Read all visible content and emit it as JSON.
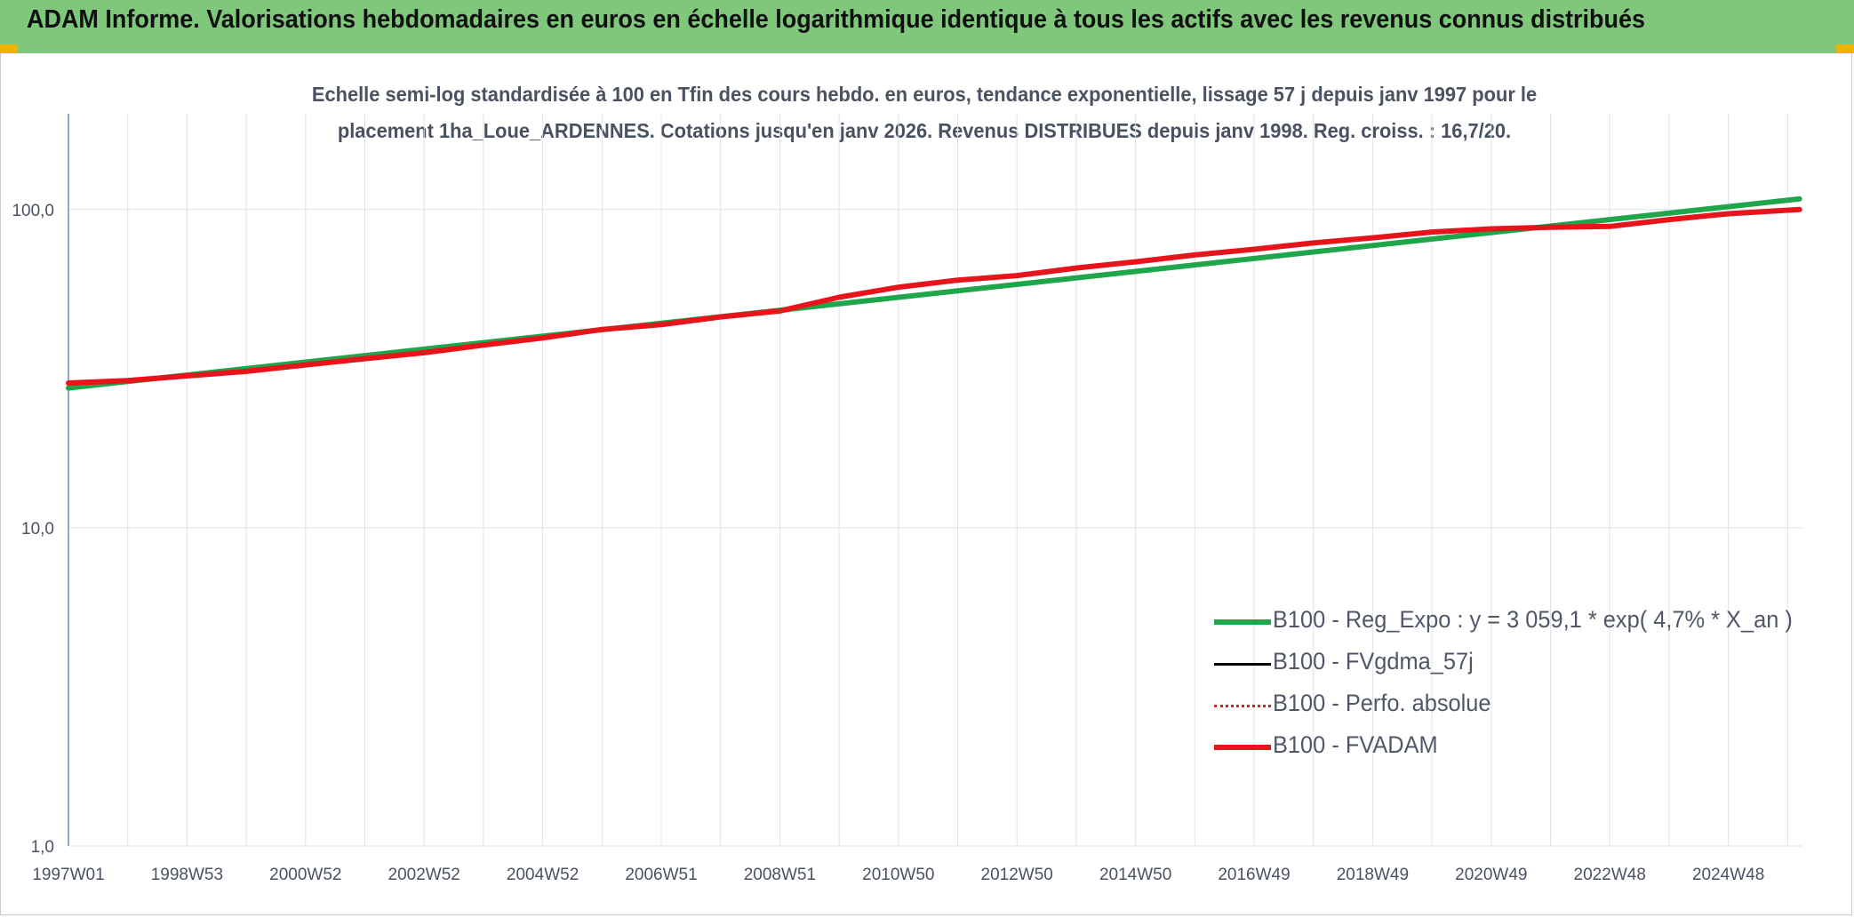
{
  "header": {
    "title": "ADAM Informe. Valorisations hebdomadaires en euros en échelle logarithmique identique à tous les actifs avec les revenus connus distribués"
  },
  "colors": {
    "header_band": "#7ec77b",
    "reg_expo": "#1fa64a",
    "fvgdma": "#000000",
    "perfo": "#d42020",
    "fvadam": "#e8141b",
    "axis": "#4472c4",
    "grid": "#dfe3e8"
  },
  "chart_data": {
    "type": "line",
    "title_line1": "Echelle semi-log standardisée à 100 en Tfin des cours hebdo. en euros, tendance exponentielle, lissage 57 j depuis janv 1997 pour le",
    "title_line2": "placement 1ha_Loue_ARDENNES. Cotations jusqu'en janv 2026. Revenus DISTRIBUES depuis janv 1998. Reg. croiss. : 16,7/20.",
    "y_scale": "log",
    "ylim": [
      1,
      200
    ],
    "y_ticks": [
      {
        "value": 1,
        "label": "1,0"
      },
      {
        "value": 10,
        "label": "10,0"
      },
      {
        "value": 100,
        "label": "100,0"
      }
    ],
    "x_range": [
      1997.0,
      2026.25
    ],
    "x_ticks": [
      {
        "x": 1997.0,
        "label": "1997W01"
      },
      {
        "x": 1999.0,
        "label": "1998W53"
      },
      {
        "x": 2001.0,
        "label": "2000W52"
      },
      {
        "x": 2003.0,
        "label": "2002W52"
      },
      {
        "x": 2005.0,
        "label": "2004W52"
      },
      {
        "x": 2007.0,
        "label": "2006W51"
      },
      {
        "x": 2009.0,
        "label": "2008W51"
      },
      {
        "x": 2011.0,
        "label": "2010W50"
      },
      {
        "x": 2013.0,
        "label": "2012W50"
      },
      {
        "x": 2015.0,
        "label": "2014W50"
      },
      {
        "x": 2017.0,
        "label": "2016W49"
      },
      {
        "x": 2019.0,
        "label": "2018W49"
      },
      {
        "x": 2021.0,
        "label": "2020W49"
      },
      {
        "x": 2023.0,
        "label": "2022W48"
      },
      {
        "x": 2025.0,
        "label": "2024W48"
      }
    ],
    "legend_position": "bottom-right",
    "series": [
      {
        "name": "B100 - Reg_Expo : y = 3 059,1 * exp( 4,7% *  X_an )",
        "style": "solid-thick",
        "color": "#1fa64a",
        "points": [
          [
            1997.0,
            27.5
          ],
          [
            2026.2,
            108.0
          ]
        ]
      },
      {
        "name": "B100 - FVgdma_57j",
        "style": "solid",
        "color": "#000000",
        "points": []
      },
      {
        "name": "B100 - Perfo. absolue",
        "style": "dotted",
        "color": "#d42020",
        "points": []
      },
      {
        "name": "B100 - FVADAM",
        "style": "solid-thick",
        "color": "#e8141b",
        "points": [
          [
            1997.0,
            28.5
          ],
          [
            1998.0,
            29.0
          ],
          [
            1999.0,
            30.0
          ],
          [
            2000.0,
            31.0
          ],
          [
            2001.0,
            32.5
          ],
          [
            2002.0,
            34.0
          ],
          [
            2003.0,
            35.5
          ],
          [
            2004.0,
            37.5
          ],
          [
            2005.0,
            39.5
          ],
          [
            2006.0,
            42.0
          ],
          [
            2007.0,
            43.5
          ],
          [
            2008.0,
            46.0
          ],
          [
            2009.0,
            48.0
          ],
          [
            2010.0,
            53.0
          ],
          [
            2011.0,
            57.0
          ],
          [
            2012.0,
            60.0
          ],
          [
            2013.0,
            62.0
          ],
          [
            2014.0,
            65.5
          ],
          [
            2015.0,
            68.5
          ],
          [
            2016.0,
            72.0
          ],
          [
            2017.0,
            75.0
          ],
          [
            2018.0,
            78.5
          ],
          [
            2019.0,
            81.5
          ],
          [
            2020.0,
            85.0
          ],
          [
            2021.0,
            87.0
          ],
          [
            2022.0,
            88.0
          ],
          [
            2023.0,
            88.5
          ],
          [
            2024.0,
            93.0
          ],
          [
            2025.0,
            97.0
          ],
          [
            2026.2,
            100.0
          ]
        ]
      }
    ]
  }
}
